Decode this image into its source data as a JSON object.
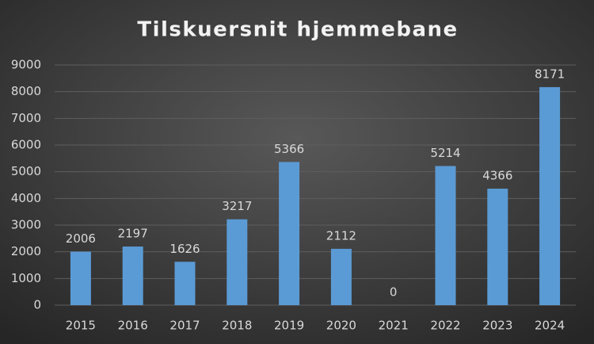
{
  "chart_data": {
    "type": "bar",
    "title": "Tilskuersnit hjemmebane",
    "categories": [
      "2015",
      "2016",
      "2017",
      "2018",
      "2019",
      "2020",
      "2021",
      "2022",
      "2023",
      "2024"
    ],
    "values": [
      2006,
      2197,
      1626,
      3217,
      5366,
      2112,
      0,
      5214,
      4366,
      8171
    ],
    "color": "#5b9bd5",
    "ylim": [
      0,
      9000
    ],
    "yticks": [
      0,
      1000,
      2000,
      3000,
      4000,
      5000,
      6000,
      7000,
      8000,
      9000
    ],
    "grid": true
  }
}
